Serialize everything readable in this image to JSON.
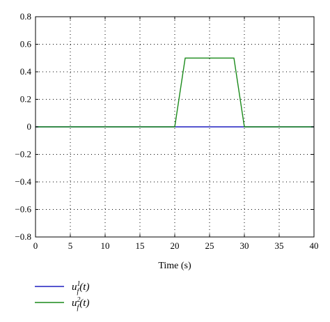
{
  "chart_data": {
    "type": "line",
    "xlabel": "Time (s)",
    "ylabel": "",
    "xlim": [
      0,
      40
    ],
    "ylim": [
      -0.8,
      0.8
    ],
    "x_ticks": [
      0,
      5,
      10,
      15,
      20,
      25,
      30,
      35,
      40
    ],
    "y_ticks": [
      -0.8,
      -0.6,
      -0.4,
      -0.2,
      0,
      0.2,
      0.4,
      0.6,
      0.8
    ],
    "x_tick_labels": [
      "0",
      "5",
      "10",
      "15",
      "20",
      "25",
      "30",
      "35",
      "40"
    ],
    "y_tick_labels": [
      "−0.8",
      "−0.6",
      "−0.4",
      "−0.2",
      "0",
      "0.2",
      "0.4",
      "0.6",
      "0.8"
    ],
    "grid": true,
    "legend_position": "bottom-left",
    "series": [
      {
        "name": "u_f^1(t)",
        "legend_base": "u",
        "legend_sub": "f",
        "legend_sup": "1",
        "legend_tail": "(t)",
        "color": "#1f1fbf",
        "x": [
          0,
          40
        ],
        "y": [
          0,
          0
        ]
      },
      {
        "name": "u_f^2(t)",
        "legend_base": "u",
        "legend_sub": "f",
        "legend_sup": "2",
        "legend_tail": "(t)",
        "color": "#1a8a1a",
        "x": [
          0,
          20,
          21.5,
          28.5,
          30,
          40
        ],
        "y": [
          0,
          0,
          0.5,
          0.5,
          0,
          0
        ]
      }
    ]
  }
}
